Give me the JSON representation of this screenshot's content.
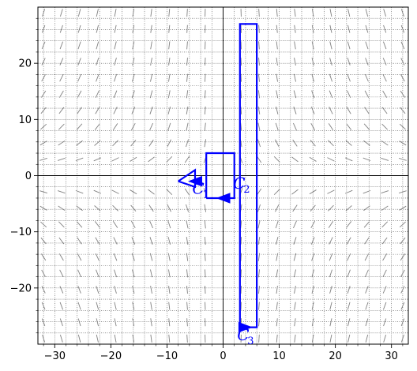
{
  "chart_data": {
    "type": "line",
    "title": "",
    "xlabel": "",
    "ylabel": "",
    "xlim": [
      -33,
      33
    ],
    "ylim": [
      -30,
      30
    ],
    "grid": true,
    "grid_style": "dotted",
    "x_ticks": [
      -30,
      -20,
      -10,
      0,
      10,
      20,
      30
    ],
    "y_ticks": [
      -20,
      -10,
      0,
      10,
      20
    ],
    "x_tick_labels": [
      "−30",
      "−20",
      "−10",
      "0",
      "10",
      "20",
      "30"
    ],
    "y_tick_labels": [
      "−20",
      "−10",
      "0",
      "10",
      "20"
    ],
    "vector_field": {
      "description_color": "#808080",
      "x_range": [
        -32,
        32
      ],
      "y_range": [
        -29,
        29
      ],
      "count": 21
    },
    "curves": [
      {
        "label_main": "C",
        "label_sub": "1",
        "color": "#0000ff",
        "kind": "triangle",
        "points": [
          [
            -8,
            -1
          ],
          [
            -5,
            1
          ],
          [
            -5,
            -2
          ],
          [
            -8,
            -1
          ]
        ],
        "arrow_at": [
          -5,
          -1
        ],
        "arrow_dir": "left",
        "label_pos": [
          -5.5,
          -3.2
        ]
      },
      {
        "label_main": "C",
        "label_sub": "2",
        "color": "#0000ff",
        "kind": "rectangle",
        "points": [
          [
            -3,
            -4
          ],
          [
            -3,
            4
          ],
          [
            2,
            4
          ],
          [
            2,
            -4
          ],
          [
            -3,
            -4
          ]
        ],
        "arrow_at": [
          0,
          -4
        ],
        "arrow_dir": "left",
        "label_pos": [
          1.8,
          -2.3
        ]
      },
      {
        "label_main": "C",
        "label_sub": "3",
        "color": "#0000ff",
        "kind": "rectangle",
        "points": [
          [
            3,
            -27
          ],
          [
            3,
            27
          ],
          [
            6,
            27
          ],
          [
            6,
            -27
          ],
          [
            3,
            -27
          ]
        ],
        "arrow_at": [
          4,
          -27
        ],
        "arrow_dir": "right",
        "label_pos": [
          2.5,
          -29.3
        ]
      }
    ]
  }
}
